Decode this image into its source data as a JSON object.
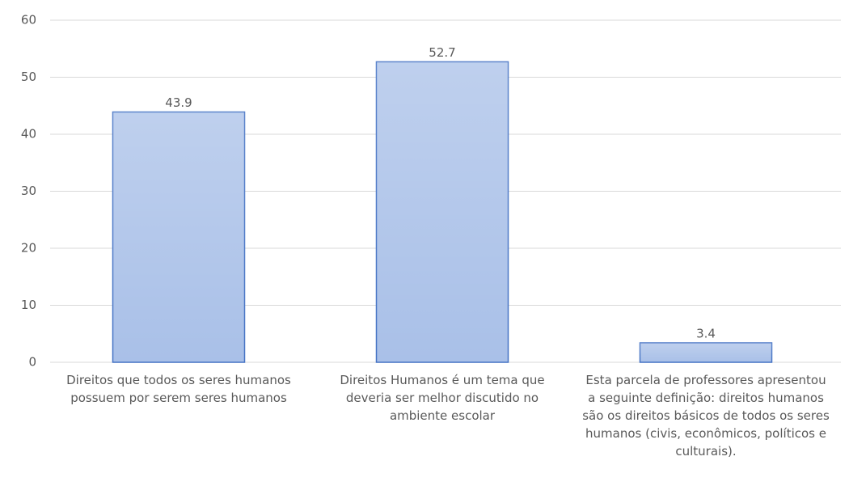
{
  "chart_data": {
    "type": "bar",
    "categories": [
      "Direitos que todos os seres humanos possuem por serem seres humanos",
      "Direitos Humanos é um tema que deveria ser melhor discutido no ambiente escolar",
      "Esta parcela de professores apresentou a seguinte definição: direitos humanos são os direitos básicos de todos os seres humanos (civis, econômicos, políticos e culturais)."
    ],
    "values": [
      43.9,
      52.7,
      3.4
    ],
    "value_labels": [
      "43.9",
      "52.7",
      "3.4"
    ],
    "color": "#a9c0e8",
    "ylim": [
      0,
      60
    ],
    "yticks": [
      0,
      10,
      20,
      30,
      40,
      50,
      60
    ],
    "grid": true
  }
}
